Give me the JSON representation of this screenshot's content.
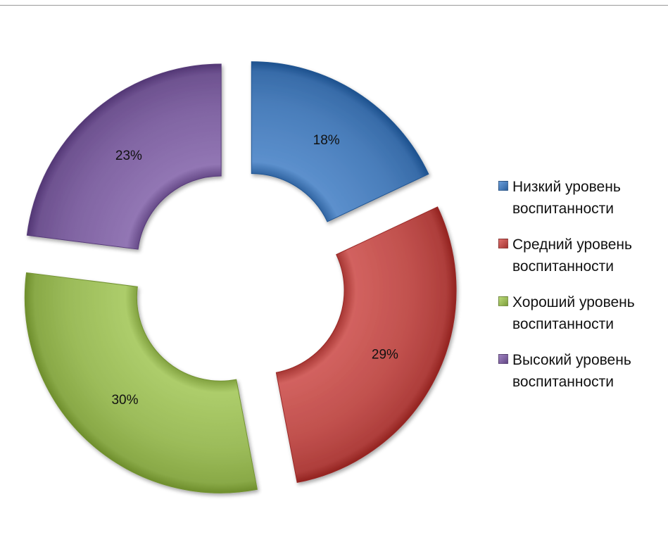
{
  "chart_data": {
    "type": "pie",
    "variant": "doughnut-exploded",
    "title": "",
    "categories": [
      "Низкий уровень воспитанности",
      "Средний уровень воспитанности",
      "Хороший уровень воспитанности",
      "Высокий уровень воспитанности"
    ],
    "values": [
      18,
      29,
      30,
      23
    ],
    "value_labels": [
      "18%",
      "29%",
      "30%",
      "23%"
    ],
    "colors": [
      "#4a7ebb",
      "#c0504d",
      "#9bbb59",
      "#8064a2"
    ],
    "legend": {
      "position": "right",
      "items": [
        {
          "line1": "Низкий уровень",
          "line2": "воспитанности",
          "color": "#4a7ebb"
        },
        {
          "line1": "Средний уровень",
          "line2": "воспитанности",
          "color": "#c0504d"
        },
        {
          "line1": "Хороший уровень",
          "line2": "воспитанности",
          "color": "#9bbb59"
        },
        {
          "line1": "Высокий уровень",
          "line2": "воспитанности",
          "color": "#8064a2"
        }
      ]
    }
  }
}
